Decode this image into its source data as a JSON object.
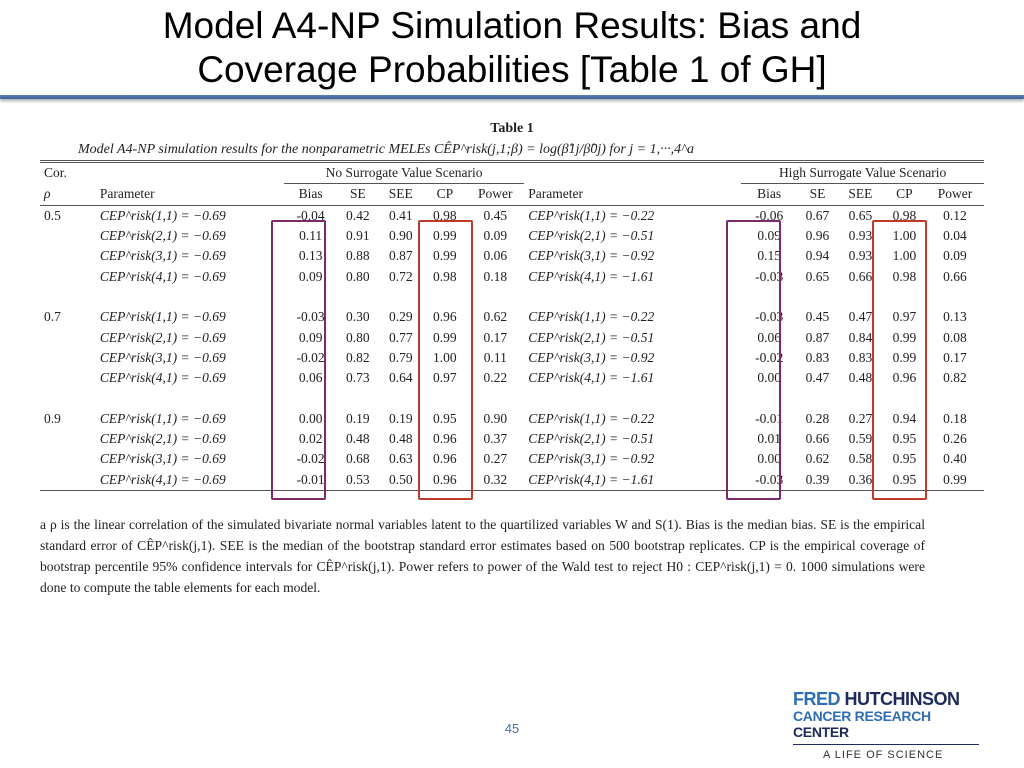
{
  "slide": {
    "title_line1": "Model A4-NP Simulation Results: Bias and",
    "title_line2": "Coverage Probabilities [Table 1 of GH]",
    "page_number": "45"
  },
  "table": {
    "label": "Table 1",
    "caption": "Model A4-NP simulation results for the nonparametric MELEs CÊP^risk(j,1;β) = log(β̂1j/β̂0j) for j = 1,···,4^a",
    "col_cor": "Cor.",
    "col_rho": "ρ",
    "scenario_left": "No Surrogate Value Scenario",
    "scenario_right": "High Surrogate Value Scenario",
    "headers": [
      "Parameter",
      "Bias",
      "SE",
      "SEE",
      "CP",
      "Power"
    ],
    "rows": [
      {
        "rho": "0.5",
        "lp": "CEP^risk(1,1) = −0.69",
        "l": [
          "-0.04",
          "0.42",
          "0.41",
          "0.98",
          "0.45"
        ],
        "rp": "CEP^risk(1,1) = −0.22",
        "r": [
          "-0.06",
          "0.67",
          "0.65",
          "0.98",
          "0.12"
        ]
      },
      {
        "rho": "",
        "lp": "CEP^risk(2,1) = −0.69",
        "l": [
          "0.11",
          "0.91",
          "0.90",
          "0.99",
          "0.09"
        ],
        "rp": "CEP^risk(2,1) = −0.51",
        "r": [
          "0.09",
          "0.96",
          "0.93",
          "1.00",
          "0.04"
        ]
      },
      {
        "rho": "",
        "lp": "CEP^risk(3,1) = −0.69",
        "l": [
          "0.13",
          "0.88",
          "0.87",
          "0.99",
          "0.06"
        ],
        "rp": "CEP^risk(3,1) = −0.92",
        "r": [
          "0.15",
          "0.94",
          "0.93",
          "1.00",
          "0.09"
        ]
      },
      {
        "rho": "",
        "lp": "CEP^risk(4,1) = −0.69",
        "l": [
          "0.09",
          "0.80",
          "0.72",
          "0.98",
          "0.18"
        ],
        "rp": "CEP^risk(4,1) = −1.61",
        "r": [
          "-0.03",
          "0.65",
          "0.66",
          "0.98",
          "0.66"
        ]
      },
      {
        "rho": "0.7",
        "lp": "CEP^risk(1,1) = −0.69",
        "l": [
          "-0.03",
          "0.30",
          "0.29",
          "0.96",
          "0.62"
        ],
        "rp": "CEP^risk(1,1) = −0.22",
        "r": [
          "-0.03",
          "0.45",
          "0.47",
          "0.97",
          "0.13"
        ]
      },
      {
        "rho": "",
        "lp": "CEP^risk(2,1) = −0.69",
        "l": [
          "0.09",
          "0.80",
          "0.77",
          "0.99",
          "0.17"
        ],
        "rp": "CEP^risk(2,1) = −0.51",
        "r": [
          "0.06",
          "0.87",
          "0.84",
          "0.99",
          "0.08"
        ]
      },
      {
        "rho": "",
        "lp": "CEP^risk(3,1) = −0.69",
        "l": [
          "-0.02",
          "0.82",
          "0.79",
          "1.00",
          "0.11"
        ],
        "rp": "CEP^risk(3,1) = −0.92",
        "r": [
          "-0.02",
          "0.83",
          "0.83",
          "0.99",
          "0.17"
        ]
      },
      {
        "rho": "",
        "lp": "CEP^risk(4,1) = −0.69",
        "l": [
          "0.06",
          "0.73",
          "0.64",
          "0.97",
          "0.22"
        ],
        "rp": "CEP^risk(4,1) = −1.61",
        "r": [
          "0.00",
          "0.47",
          "0.48",
          "0.96",
          "0.82"
        ]
      },
      {
        "rho": "0.9",
        "lp": "CEP^risk(1,1) = −0.69",
        "l": [
          "0.00",
          "0.19",
          "0.19",
          "0.95",
          "0.90"
        ],
        "rp": "CEP^risk(1,1) = −0.22",
        "r": [
          "-0.01",
          "0.28",
          "0.27",
          "0.94",
          "0.18"
        ]
      },
      {
        "rho": "",
        "lp": "CEP^risk(2,1) = −0.69",
        "l": [
          "0.02",
          "0.48",
          "0.48",
          "0.96",
          "0.37"
        ],
        "rp": "CEP^risk(2,1) = −0.51",
        "r": [
          "0.01",
          "0.66",
          "0.59",
          "0.95",
          "0.26"
        ]
      },
      {
        "rho": "",
        "lp": "CEP^risk(3,1) = −0.69",
        "l": [
          "-0.02",
          "0.68",
          "0.63",
          "0.96",
          "0.27"
        ],
        "rp": "CEP^risk(3,1) = −0.92",
        "r": [
          "0.00",
          "0.62",
          "0.58",
          "0.95",
          "0.40"
        ]
      },
      {
        "rho": "",
        "lp": "CEP^risk(4,1) = −0.69",
        "l": [
          "-0.01",
          "0.53",
          "0.50",
          "0.96",
          "0.32"
        ],
        "rp": "CEP^risk(4,1) = −1.61",
        "r": [
          "-0.03",
          "0.39",
          "0.36",
          "0.95",
          "0.99"
        ]
      }
    ],
    "footnote": "a ρ is the linear correlation of the simulated bivariate normal variables latent to the quartilized variables W and S(1). Bias is the median bias. SE is the empirical standard error of CÊP^risk(j,1). SEE is the median of the bootstrap standard error estimates based on 500 bootstrap replicates. CP is the empirical coverage of bootstrap percentile 95% confidence intervals for CÊP^risk(j,1). Power refers to power of the Wald test to reject H0 : CEP^risk(j,1) = 0. 1000 simulations were done to compute the table elements for each model."
  },
  "logo": {
    "line1a": "FRED",
    "line1b": "HUTCHINSON",
    "line2a": "CANCER RESEARCH",
    "line2b": "CENTER",
    "tagline": "A LIFE OF SCIENCE"
  },
  "colors": {
    "bias_box": "#7b2a6e",
    "cp_box": "#c0392b",
    "title_rule": "#4a6fa5"
  }
}
